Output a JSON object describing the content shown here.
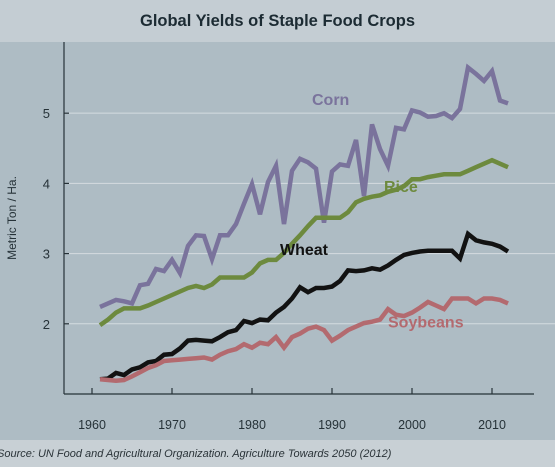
{
  "chart_data": {
    "type": "line",
    "title": "Global Yields of Staple Food Crops",
    "ylabel": "Metric Ton / Ha.",
    "xlabel": "",
    "xlim": [
      1956.5,
      2014.5
    ],
    "ylim": [
      1.0,
      5.9
    ],
    "xticks": [
      1960,
      1970,
      1980,
      1990,
      2000,
      2010
    ],
    "yticks": [
      2,
      3,
      4,
      5
    ],
    "grid": true,
    "legend": "inline labels",
    "source": "Source: UN Food and Agricultural Organization. Agriculture Towards 2050 (2012)",
    "series": [
      {
        "name": "Corn",
        "color": "#7a739c",
        "x": [
          1961,
          1962,
          1963,
          1964,
          1965,
          1966,
          1967,
          1968,
          1969,
          1970,
          1971,
          1972,
          1973,
          1974,
          1975,
          1976,
          1977,
          1978,
          1979,
          1980,
          1981,
          1982,
          1983,
          1984,
          1985,
          1986,
          1987,
          1988,
          1989,
          1990,
          1991,
          1992,
          1993,
          1994,
          1995,
          1996,
          1997,
          1998,
          1999,
          2000,
          2001,
          2002,
          2003,
          2004,
          2005,
          2006,
          2007,
          2008,
          2009,
          2010,
          2011,
          2012
        ],
        "y": [
          2.24,
          2.29,
          2.34,
          2.32,
          2.29,
          2.55,
          2.57,
          2.78,
          2.75,
          2.91,
          2.72,
          3.11,
          3.26,
          3.25,
          2.92,
          3.26,
          3.26,
          3.42,
          3.71,
          3.99,
          3.56,
          4.02,
          4.25,
          3.42,
          4.18,
          4.35,
          4.3,
          4.21,
          3.44,
          4.17,
          4.27,
          4.25,
          4.62,
          3.82,
          4.84,
          4.49,
          4.25,
          4.79,
          4.77,
          5.04,
          5.01,
          4.95,
          4.96,
          5.0,
          4.93,
          5.06,
          5.65,
          5.56,
          5.46,
          5.6,
          5.18,
          5.14
        ]
      },
      {
        "name": "Rice",
        "color": "#6d8a3e",
        "x": [
          1961,
          1962,
          1963,
          1964,
          1965,
          1966,
          1967,
          1968,
          1969,
          1970,
          1971,
          1972,
          1973,
          1974,
          1975,
          1976,
          1977,
          1978,
          1979,
          1980,
          1981,
          1982,
          1983,
          1984,
          1985,
          1986,
          1987,
          1988,
          1989,
          1990,
          1991,
          1992,
          1993,
          1994,
          1995,
          1996,
          1997,
          1998,
          1999,
          2000,
          2001,
          2002,
          2003,
          2004,
          2005,
          2006,
          2007,
          2008,
          2009,
          2010,
          2011,
          2012
        ],
        "y": [
          1.98,
          2.06,
          2.16,
          2.22,
          2.22,
          2.22,
          2.26,
          2.31,
          2.36,
          2.41,
          2.46,
          2.51,
          2.54,
          2.51,
          2.56,
          2.66,
          2.66,
          2.66,
          2.66,
          2.73,
          2.86,
          2.91,
          2.91,
          3.01,
          3.14,
          3.26,
          3.39,
          3.51,
          3.51,
          3.51,
          3.51,
          3.59,
          3.73,
          3.78,
          3.81,
          3.83,
          3.88,
          3.91,
          3.96,
          4.06,
          4.06,
          4.09,
          4.11,
          4.13,
          4.13,
          4.13,
          4.18,
          4.23,
          4.28,
          4.33,
          4.28,
          4.23
        ]
      },
      {
        "name": "Wheat",
        "color": "#121212",
        "x": [
          1961,
          1962,
          1963,
          1964,
          1965,
          1966,
          1967,
          1968,
          1969,
          1970,
          1971,
          1972,
          1973,
          1974,
          1975,
          1976,
          1977,
          1978,
          1979,
          1980,
          1981,
          1982,
          1983,
          1984,
          1985,
          1986,
          1987,
          1988,
          1989,
          1990,
          1991,
          1992,
          1993,
          1994,
          1995,
          1996,
          1997,
          1998,
          1999,
          2000,
          2001,
          2002,
          2003,
          2004,
          2005,
          2006,
          2007,
          2008,
          2009,
          2010,
          2011,
          2012
        ],
        "y": [
          1.21,
          1.22,
          1.3,
          1.27,
          1.35,
          1.38,
          1.45,
          1.47,
          1.56,
          1.57,
          1.65,
          1.76,
          1.77,
          1.76,
          1.75,
          1.81,
          1.88,
          1.91,
          2.04,
          2.01,
          2.06,
          2.05,
          2.16,
          2.24,
          2.36,
          2.52,
          2.45,
          2.51,
          2.51,
          2.53,
          2.61,
          2.76,
          2.75,
          2.76,
          2.79,
          2.77,
          2.83,
          2.91,
          2.98,
          3.01,
          3.03,
          3.04,
          3.04,
          3.04,
          3.04,
          2.93,
          3.28,
          3.19,
          3.16,
          3.14,
          3.1,
          3.03
        ]
      },
      {
        "name": "Soybeans",
        "color": "#b36a6f",
        "x": [
          1961,
          1962,
          1963,
          1964,
          1965,
          1966,
          1967,
          1968,
          1969,
          1970,
          1971,
          1972,
          1973,
          1974,
          1975,
          1976,
          1977,
          1978,
          1979,
          1980,
          1981,
          1982,
          1983,
          1984,
          1985,
          1986,
          1987,
          1988,
          1989,
          1990,
          1991,
          1992,
          1993,
          1994,
          1995,
          1996,
          1997,
          1998,
          1999,
          2000,
          2001,
          2002,
          2003,
          2004,
          2005,
          2006,
          2007,
          2008,
          2009,
          2010,
          2011,
          2012
        ],
        "y": [
          1.21,
          1.2,
          1.19,
          1.2,
          1.25,
          1.31,
          1.37,
          1.41,
          1.47,
          1.48,
          1.49,
          1.5,
          1.51,
          1.52,
          1.49,
          1.56,
          1.61,
          1.64,
          1.71,
          1.66,
          1.73,
          1.71,
          1.81,
          1.66,
          1.81,
          1.86,
          1.93,
          1.96,
          1.91,
          1.76,
          1.83,
          1.91,
          1.96,
          2.01,
          2.03,
          2.06,
          2.21,
          2.13,
          2.11,
          2.16,
          2.23,
          2.31,
          2.26,
          2.21,
          2.36,
          2.36,
          2.36,
          2.29,
          2.36,
          2.36,
          2.34,
          2.29
        ]
      }
    ]
  },
  "colors": {
    "background": "#aebcc4",
    "title_bar": "#c4cdd3",
    "source_bar": "#c8d0d5",
    "grid": "#d4dbe0",
    "axis": "#263238"
  }
}
